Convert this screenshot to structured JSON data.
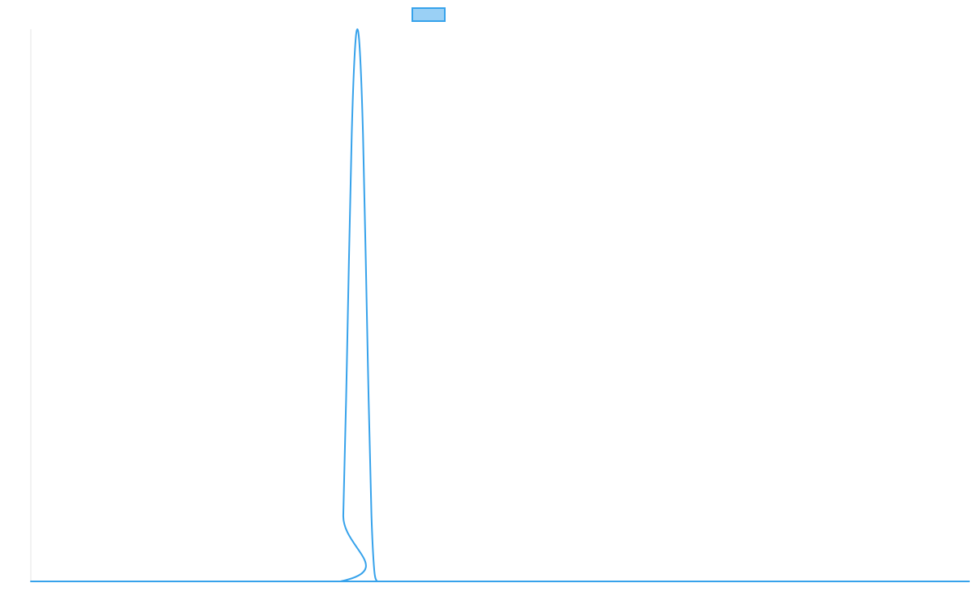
{
  "chart_data": {
    "type": "line",
    "title": "",
    "xlabel": "",
    "ylabel": "",
    "xlim": [
      0,
      100
    ],
    "ylim": [
      0,
      1
    ],
    "grid": false,
    "legend": "top-center",
    "series": [
      {
        "name": "",
        "color": "#36a2eb",
        "fill_color": "#9ad0f5",
        "x": [
          0,
          33,
          33.3,
          33.6,
          33.9,
          34.2,
          34.5,
          34.8,
          35.1,
          35.4,
          35.7,
          36,
          36.3,
          36.6,
          36.9,
          37,
          100
        ],
        "y": [
          0,
          0,
          0.12,
          0.33,
          0.58,
          0.81,
          0.95,
          1.0,
          0.95,
          0.81,
          0.58,
          0.33,
          0.12,
          0.02,
          0,
          0,
          0
        ]
      }
    ]
  }
}
